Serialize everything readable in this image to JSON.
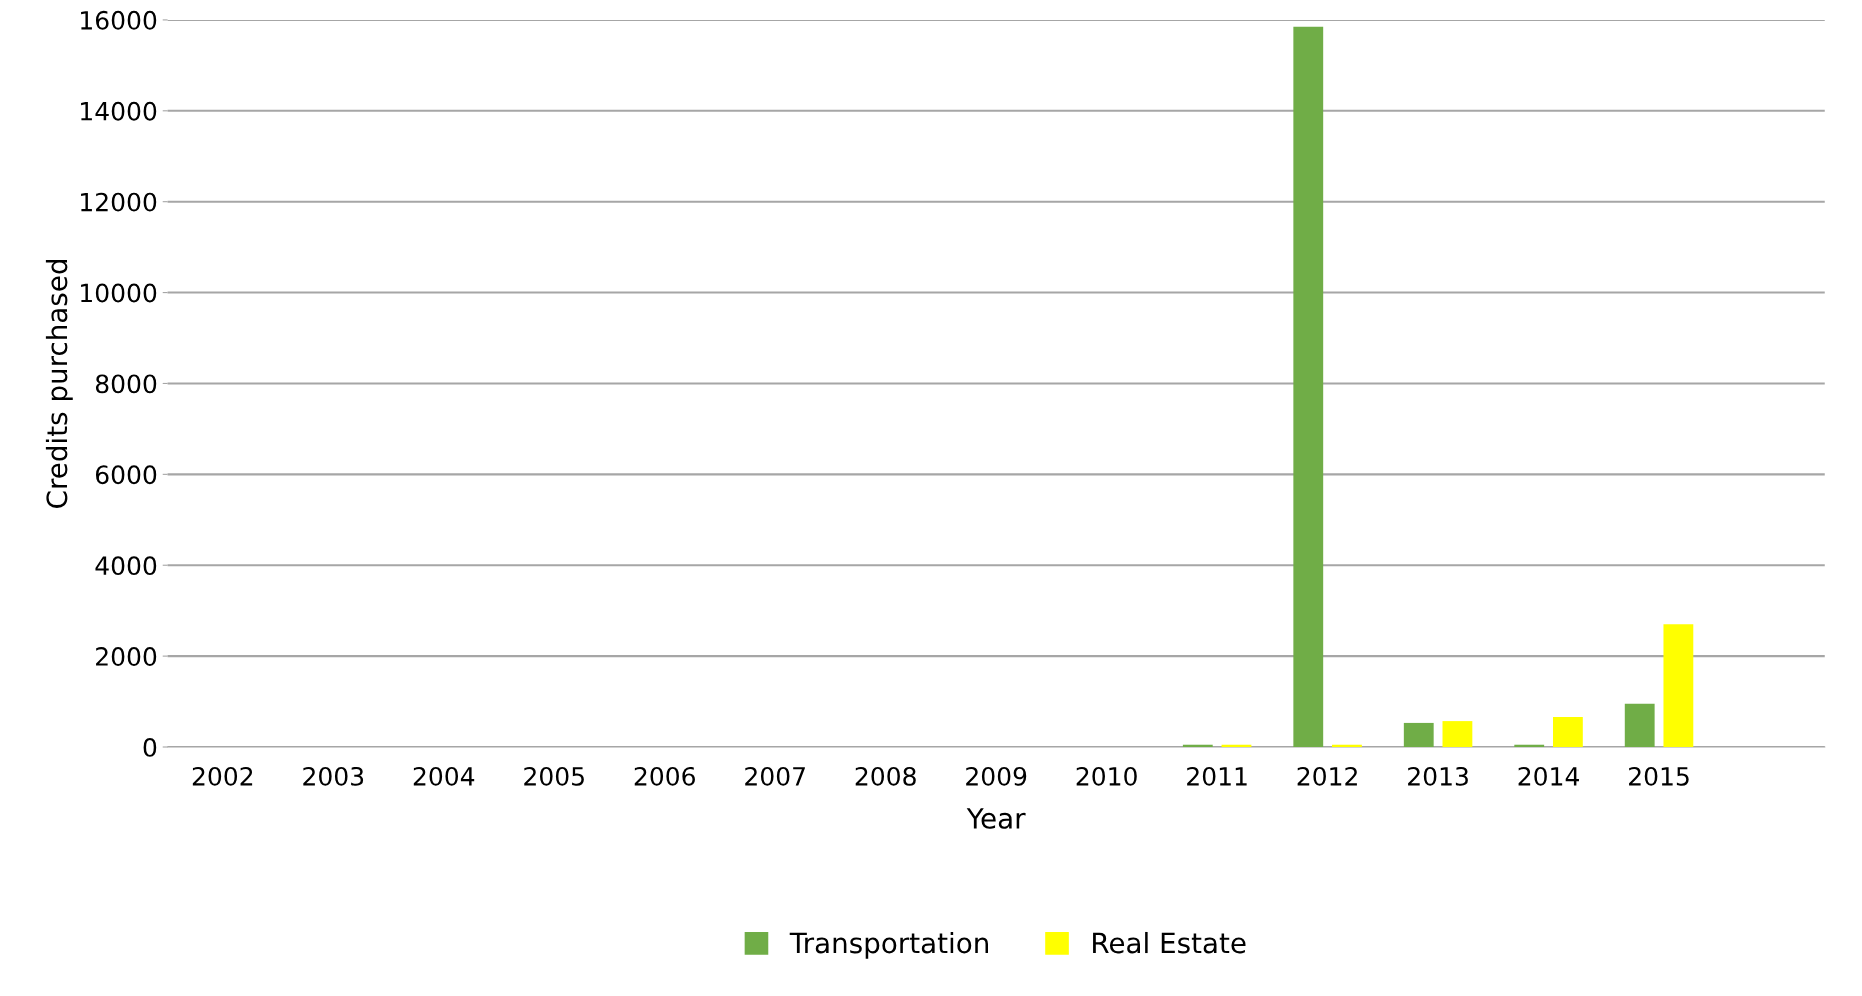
{
  "chart_data": {
    "type": "bar",
    "xlabel": "Year",
    "ylabel": "Credits purchased",
    "categories": [
      "2002",
      "2003",
      "2004",
      "2005",
      "2006",
      "2007",
      "2008",
      "2009",
      "2010",
      "2011",
      "2012",
      "2013",
      "2014",
      "2015",
      null
    ],
    "series": [
      {
        "name": "Transportation",
        "color": "#70ad47",
        "values": [
          0,
          0,
          0,
          0,
          0,
          0,
          0,
          0,
          0,
          50,
          15850,
          530,
          50,
          950,
          null
        ]
      },
      {
        "name": "Real Estate",
        "color": "#ffff00",
        "values": [
          0,
          0,
          0,
          0,
          0,
          0,
          0,
          0,
          0,
          50,
          50,
          570,
          660,
          2700,
          null
        ]
      }
    ],
    "ylim": [
      0,
      16000
    ],
    "yticks": [
      0,
      2000,
      4000,
      6000,
      8000,
      10000,
      12000,
      14000,
      16000
    ],
    "grid": "y",
    "legend": "bottom"
  }
}
